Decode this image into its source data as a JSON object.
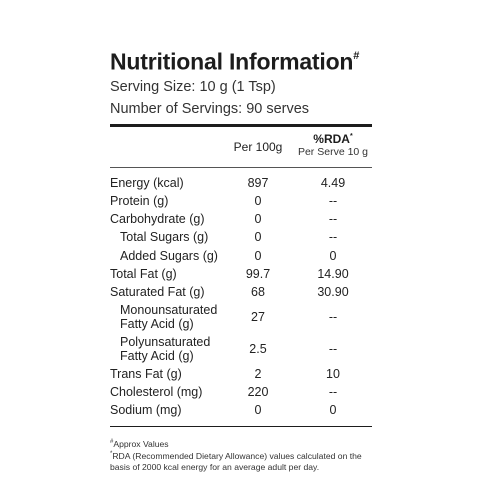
{
  "title": "Nutritional Information",
  "title_mark": "#",
  "serving_size": "Serving Size: 10 g (1 Tsp)",
  "servings": "Number of Servings: 90 serves",
  "columns": {
    "per100": "Per 100g",
    "rda": "%RDA",
    "rda_mark": "*",
    "rda_sub": "Per Serve 10 g"
  },
  "rows": [
    {
      "name": "Energy (kcal)",
      "per100": "897",
      "rda": "4.49",
      "indent": false
    },
    {
      "name": "Protein (g)",
      "per100": "0",
      "rda": "--",
      "indent": false
    },
    {
      "name": "Carbohydrate (g)",
      "per100": "0",
      "rda": "--",
      "indent": false
    },
    {
      "name": "Total Sugars (g)",
      "per100": "0",
      "rda": "--",
      "indent": true
    },
    {
      "name": "Added Sugars (g)",
      "per100": "0",
      "rda": "0",
      "indent": true
    },
    {
      "name": "Total Fat (g)",
      "per100": "99.7",
      "rda": "14.90",
      "indent": false
    },
    {
      "name": "Saturated Fat (g)",
      "per100": "68",
      "rda": "30.90",
      "indent": false
    },
    {
      "name_lines": [
        "Monounsaturated",
        "Fatty Acid (g)"
      ],
      "per100": "27",
      "rda": "--",
      "indent": true
    },
    {
      "name_lines": [
        "Polyunsaturated",
        "Fatty Acid (g)"
      ],
      "per100": "2.5",
      "rda": "--",
      "indent": true
    },
    {
      "name": "Trans Fat (g)",
      "per100": "2",
      "rda": "10",
      "indent": false
    },
    {
      "name": "Cholesterol (mg)",
      "per100": "220",
      "rda": "--",
      "indent": false
    },
    {
      "name": "Sodium (mg)",
      "per100": "0",
      "rda": "0",
      "indent": false
    }
  ],
  "footnotes": {
    "approx_mark": "#",
    "approx": "Approx Values",
    "rda_mark": "*",
    "rda_note": "RDA (Recommended Dietary Allowance) values calculated on the basis of  2000 kcal energy for an average adult per day."
  }
}
